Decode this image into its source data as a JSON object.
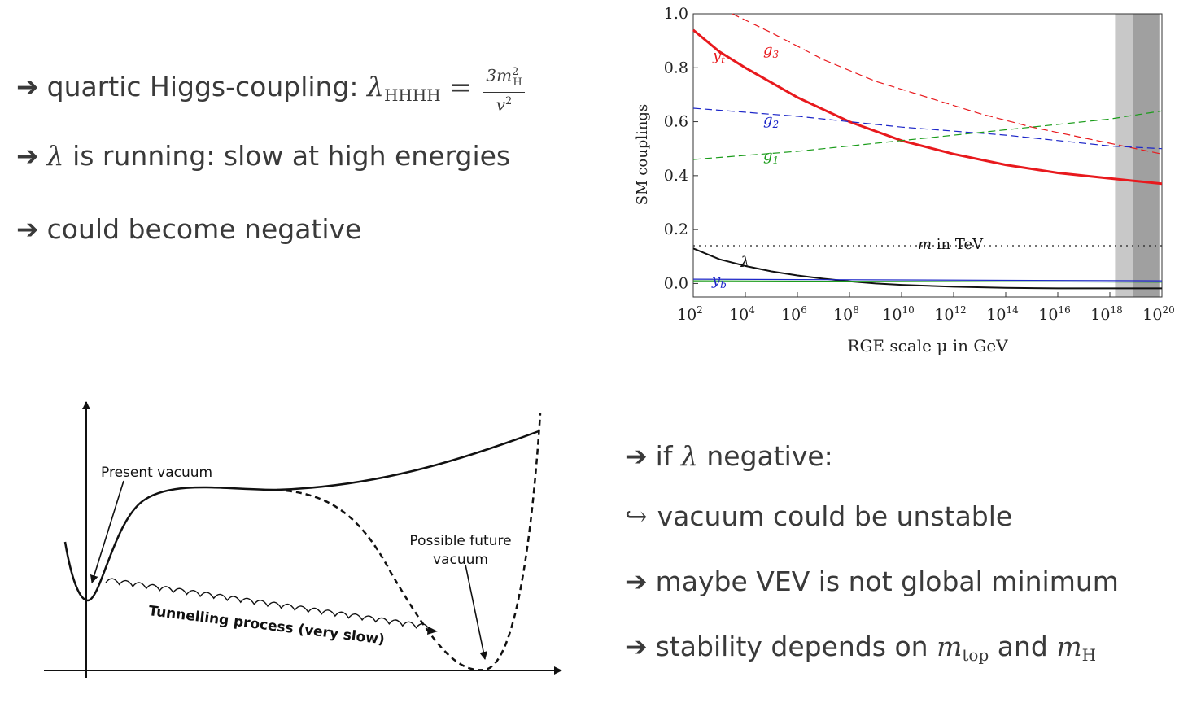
{
  "bullets_top": {
    "b1": {
      "text": "quartic Higgs-coupling: ",
      "lambda": "λ",
      "sub": "HHHH",
      "eq": " = ",
      "num": "3m",
      "num_sup": "2",
      "num_sub": "H",
      "den": "v",
      "den_sup": "2"
    },
    "b2": {
      "lambda": "λ",
      "text": " is running: slow at high energies"
    },
    "b3": {
      "text": "could become negative"
    }
  },
  "bullets_bottom": {
    "b1": {
      "text_pre": "if ",
      "lambda": "λ",
      "text_post": " negative:"
    },
    "b2": {
      "hook": "↪",
      "text": "vacuum could be unstable"
    },
    "b3": {
      "text": "maybe VEV is not global minimum"
    },
    "b4": {
      "text": "stability depends on ",
      "m1": "m",
      "m1_sub": "top",
      "and": " and ",
      "m2": "m",
      "m2_sub": "H"
    }
  },
  "arrow_glyph": "➔",
  "vacuum_diagram": {
    "present_vacuum": "Present vacuum",
    "future_vacuum_1": "Possible future",
    "future_vacuum_2": "vacuum",
    "tunnelling": "Tunnelling process (very slow)"
  },
  "chart_data": {
    "type": "line",
    "xlabel": "RGE scale μ in GeV",
    "ylabel": "SM couplings",
    "x_scale": "log10",
    "xlim": [
      100,
      1e+20
    ],
    "ylim": [
      -0.05,
      1.0
    ],
    "x_ticks": [
      2,
      4,
      6,
      8,
      10,
      12,
      14,
      16,
      18,
      20
    ],
    "y_ticks": [
      "0.0",
      "0.2",
      "0.4",
      "0.6",
      "0.8",
      "1.0"
    ],
    "shaded_bands": [
      {
        "from_log10": 18.2,
        "to_log10": 18.9,
        "color": "#c8c8c8"
      },
      {
        "from_log10": 18.9,
        "to_log10": 19.9,
        "color": "#a0a0a0"
      }
    ],
    "series": [
      {
        "name": "g3",
        "color": "#e8191d",
        "style": "dashed",
        "x_log10": [
          3.5,
          5,
          7,
          9,
          11,
          13,
          15,
          17,
          19,
          20
        ],
        "y": [
          1.0,
          0.93,
          0.83,
          0.75,
          0.69,
          0.63,
          0.58,
          0.54,
          0.5,
          0.48
        ]
      },
      {
        "name": "yt",
        "color": "#e8191d",
        "style": "solid",
        "x_log10": [
          2,
          3,
          4,
          6,
          8,
          10,
          12,
          14,
          16,
          18,
          20
        ],
        "y": [
          0.94,
          0.86,
          0.8,
          0.69,
          0.6,
          0.53,
          0.48,
          0.44,
          0.41,
          0.39,
          0.37
        ]
      },
      {
        "name": "g2",
        "color": "#1c26c8",
        "style": "dashed",
        "x_log10": [
          2,
          6,
          10,
          14,
          18,
          20
        ],
        "y": [
          0.65,
          0.62,
          0.58,
          0.55,
          0.51,
          0.5
        ]
      },
      {
        "name": "g1",
        "color": "#1a9c1a",
        "style": "dashed",
        "x_log10": [
          2,
          6,
          10,
          14,
          18,
          20
        ],
        "y": [
          0.46,
          0.49,
          0.53,
          0.57,
          0.61,
          0.64
        ]
      },
      {
        "name": "m in TeV",
        "color": "#222222",
        "style": "dotted",
        "x_log10": [
          2,
          20
        ],
        "y": [
          0.14,
          0.14
        ]
      },
      {
        "name": "λ",
        "color": "#111111",
        "style": "solid",
        "x_log10": [
          2,
          3,
          4,
          5,
          6,
          7,
          8,
          9,
          10,
          12,
          14,
          16,
          18,
          20
        ],
        "y": [
          0.13,
          0.09,
          0.065,
          0.045,
          0.03,
          0.018,
          0.008,
          0.0,
          -0.005,
          -0.012,
          -0.016,
          -0.018,
          -0.018,
          -0.018
        ]
      },
      {
        "name": "yb",
        "color": "#1c26c8",
        "style": "solid",
        "x_log10": [
          2,
          20
        ],
        "y": [
          0.016,
          0.01
        ]
      },
      {
        "name": "green-low",
        "color": "#1a9c1a",
        "style": "solid",
        "x_log10": [
          2,
          20
        ],
        "y": [
          0.01,
          0.005
        ]
      }
    ],
    "labels": {
      "g3": "g",
      "g3_sub": "3",
      "yt": "y",
      "yt_sub": "t",
      "g2": "g",
      "g2_sub": "2",
      "g1": "g",
      "g1_sub": "1",
      "m_tev": "m",
      "m_tev_rest": " in TeV",
      "lambda": "λ",
      "yb": "y",
      "yb_sub": "b"
    }
  }
}
